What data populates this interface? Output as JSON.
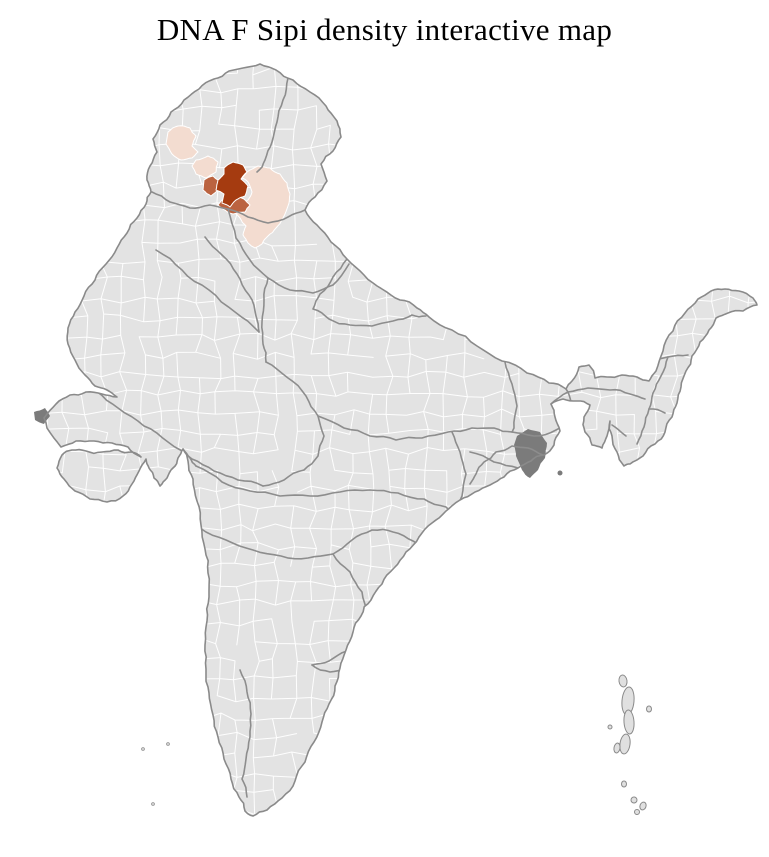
{
  "title": "DNA F Sipi density interactive map",
  "map": {
    "region": "India districts",
    "background": "#ffffff",
    "district_fill": "#e3e3e3",
    "district_border": "#ffffff",
    "state_border": "#8d8d8d",
    "coast_border": "#8a8a8a",
    "delta_fill": "#7b7b7b",
    "island_fill": "#e0e0e0",
    "density_classes": [
      {
        "level": "high",
        "color": "#a53b10"
      },
      {
        "level": "medium",
        "color": "#bb6340"
      },
      {
        "level": "low",
        "color": "#f3dcd0"
      }
    ]
  }
}
